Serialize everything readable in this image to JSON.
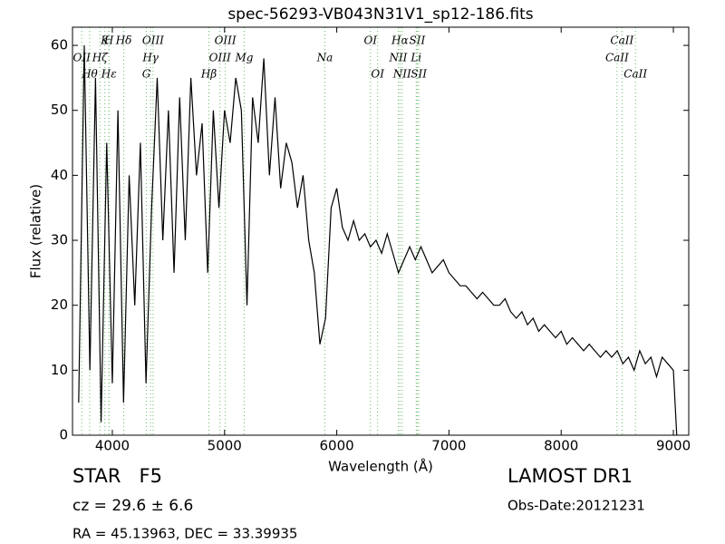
{
  "chart_data": {
    "type": "line",
    "title": "spec-56293-VB043N31V1_sp12-186.fits",
    "x_label": "Wavelength (Å)",
    "y_label": "Flux (relative)",
    "xlim": [
      3645,
      9137
    ],
    "ylim": [
      0,
      62.8
    ],
    "xticks": [
      4000,
      5000,
      6000,
      7000,
      8000,
      9000
    ],
    "yticks": [
      0,
      10,
      20,
      30,
      40,
      50,
      60
    ],
    "color": "#000000",
    "line_color": "#66bb66",
    "x": [
      3700,
      3750,
      3800,
      3850,
      3900,
      3950,
      4000,
      4050,
      4100,
      4150,
      4200,
      4250,
      4300,
      4350,
      4400,
      4450,
      4500,
      4550,
      4600,
      4650,
      4700,
      4750,
      4800,
      4850,
      4900,
      4950,
      5000,
      5050,
      5100,
      5150,
      5200,
      5250,
      5300,
      5350,
      5400,
      5450,
      5500,
      5550,
      5600,
      5650,
      5700,
      5750,
      5800,
      5850,
      5900,
      5950,
      6000,
      6050,
      6100,
      6150,
      6200,
      6250,
      6300,
      6350,
      6400,
      6450,
      6500,
      6550,
      6600,
      6650,
      6700,
      6750,
      6800,
      6850,
      6900,
      6950,
      7000,
      7050,
      7100,
      7150,
      7200,
      7250,
      7300,
      7350,
      7400,
      7450,
      7500,
      7550,
      7600,
      7650,
      7700,
      7750,
      7800,
      7850,
      7900,
      7950,
      8000,
      8050,
      8100,
      8150,
      8200,
      8250,
      8300,
      8350,
      8400,
      8450,
      8500,
      8550,
      8600,
      8650,
      8700,
      8750,
      8800,
      8850,
      8900,
      8950,
      9000,
      9030
    ],
    "y": [
      5,
      60,
      10,
      55,
      2,
      45,
      8,
      50,
      5,
      40,
      20,
      45,
      8,
      35,
      55,
      30,
      50,
      25,
      52,
      30,
      55,
      40,
      48,
      25,
      50,
      35,
      50,
      45,
      55,
      50,
      20,
      52,
      45,
      58,
      40,
      52,
      38,
      45,
      42,
      35,
      40,
      30,
      25,
      14,
      18,
      35,
      38,
      32,
      30,
      33,
      30,
      31,
      29,
      30,
      28,
      31,
      28,
      25,
      27,
      29,
      27,
      29,
      27,
      25,
      26,
      27,
      25,
      24,
      23,
      23,
      22,
      21,
      22,
      21,
      20,
      20,
      21,
      19,
      18,
      19,
      17,
      18,
      16,
      17,
      16,
      15,
      16,
      14,
      15,
      14,
      13,
      14,
      13,
      12,
      13,
      12,
      13,
      11,
      12,
      10,
      13,
      11,
      12,
      9,
      12,
      11,
      10,
      0
    ],
    "spectral_lines": [
      [
        {
          "label": "K",
          "x": 3934
        },
        {
          "label": "H",
          "x": 3969
        },
        {
          "label": "Hδ",
          "x": 4102
        },
        {
          "label": "OIII",
          "x": 4363
        },
        {
          "label": "OIII",
          "x": 5007
        },
        {
          "label": "OI",
          "x": 6300
        },
        {
          "label": "Hα",
          "x": 6563
        },
        {
          "label": "SII",
          "x": 6717
        },
        {
          "label": "CaII",
          "x": 8542
        }
      ],
      [
        {
          "label": "OII",
          "x": 3727
        },
        {
          "label": "Hζ",
          "x": 3889
        },
        {
          "label": "Hγ",
          "x": 4341
        },
        {
          "label": "OIII",
          "x": 4959
        },
        {
          "label": "Mg",
          "x": 5175
        },
        {
          "label": "Na",
          "x": 5894
        },
        {
          "label": "NII",
          "x": 6548
        },
        {
          "label": "Li",
          "x": 6708
        },
        {
          "label": "CaII",
          "x": 8498
        }
      ],
      [
        {
          "label": "Hθ",
          "x": 3798
        },
        {
          "label": "Hε",
          "x": 3970
        },
        {
          "label": "G",
          "x": 4304
        },
        {
          "label": "Hβ",
          "x": 4861
        },
        {
          "label": "OI",
          "x": 6364
        },
        {
          "label": "NII",
          "x": 6583
        },
        {
          "label": "SII",
          "x": 6731
        },
        {
          "label": "CaII",
          "x": 8662
        }
      ]
    ],
    "annotations": {
      "object": "STAR   F5",
      "redshift": "cz = 29.6 ± 6.6",
      "coords": "RA = 45.13963, DEC = 33.39935",
      "survey": "LAMOST DR1",
      "date": "Obs-Date:20121231"
    }
  }
}
